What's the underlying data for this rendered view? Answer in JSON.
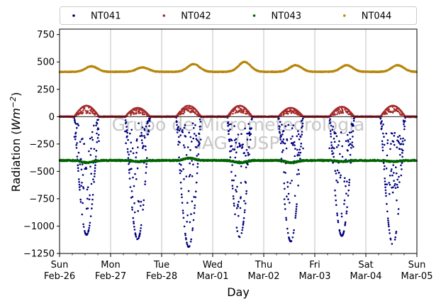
{
  "chart_data": {
    "type": "scatter",
    "xlabel": "Day",
    "ylabel_prefix": "Radiation (",
    "ylabel_unit": "Wm",
    "ylabel_exp": "−2",
    "ylabel_suffix": ")",
    "ylim": [
      -1250,
      800
    ],
    "yticks": [
      -1250,
      -1000,
      -750,
      -500,
      -250,
      0,
      250,
      500,
      750
    ],
    "xlim": [
      0,
      7
    ],
    "grid": "vertical",
    "legend_placement": "top",
    "xticks": [
      {
        "day": "Sun",
        "date": "Feb-26"
      },
      {
        "day": "Mon",
        "date": "Feb-27"
      },
      {
        "day": "Tue",
        "date": "Feb-28"
      },
      {
        "day": "Wed",
        "date": "Mar-01"
      },
      {
        "day": "Thu",
        "date": "Mar-02"
      },
      {
        "day": "Fri",
        "date": "Mar-03"
      },
      {
        "day": "Sat",
        "date": "Mar-04"
      },
      {
        "day": "Sun",
        "date": "Mar-05"
      }
    ],
    "watermark": [
      "Grupo de Micrometeorologia",
      "IAG / USP"
    ],
    "series": [
      {
        "name": "NT041",
        "color": "#00007f",
        "profile": "daytime dip (negative)",
        "night_value": 0,
        "daily_min": [
          -1080,
          -1120,
          -1190,
          -1100,
          -1140,
          -1090,
          -1170
        ],
        "sunrise_hours": 6.8,
        "sunset_hours": 18.6
      },
      {
        "name": "NT042",
        "color": "#a52a2a",
        "profile": "daytime hump (positive)",
        "night_value": 0,
        "daily_max": [
          100,
          80,
          100,
          100,
          80,
          90,
          100
        ],
        "sunrise_hours": 6.8,
        "sunset_hours": 18.6
      },
      {
        "name": "NT043",
        "color": "#006400",
        "profile": "near constant",
        "night_value": -400,
        "daily_extreme": [
          -420,
          -410,
          -380,
          -420,
          -420,
          -410,
          -410
        ]
      },
      {
        "name": "NT044",
        "color": "#b8860b",
        "profile": "near constant with afternoon rise",
        "night_value": 410,
        "daily_max": [
          460,
          450,
          480,
          500,
          470,
          470,
          470
        ]
      }
    ]
  }
}
